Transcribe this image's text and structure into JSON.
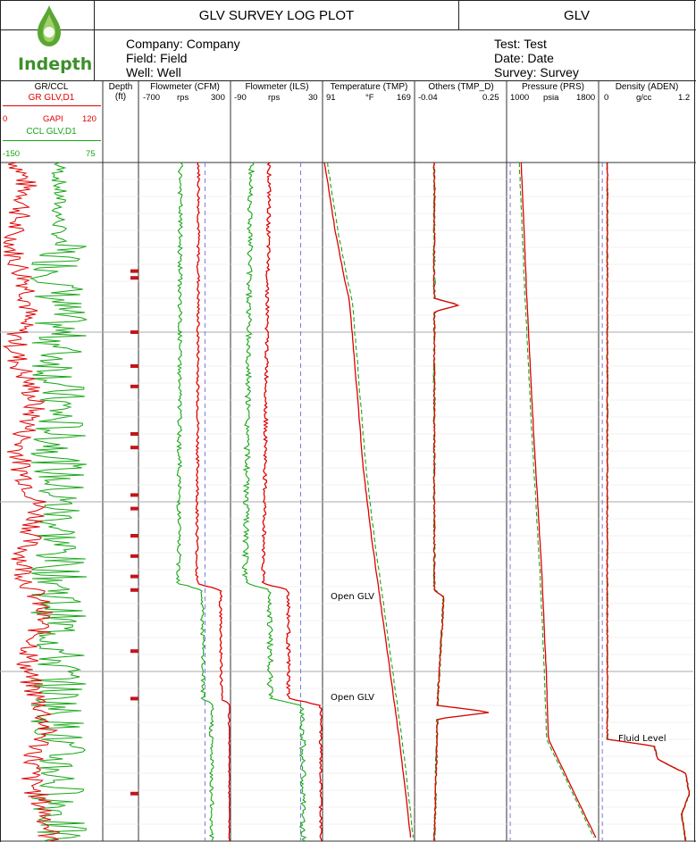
{
  "header": {
    "logo_text": "Indepth",
    "title": "GLV SURVEY LOG PLOT",
    "short_title": "GLV",
    "company": "Company: Company",
    "field": "Field: Field",
    "well": "Well: Well",
    "test": "Test: Test",
    "date": "Date: Date",
    "survey": "Survey: Survey"
  },
  "colors": {
    "red": "#e00000",
    "green": "#16a616",
    "grid": "#bbbbbb",
    "dashed_ref": "#7a7adf",
    "marker": "#c0161c"
  },
  "tracks": {
    "gr_ccl": {
      "title": "GR/CCL",
      "gr_curve": "GR GLV,D1",
      "gr_min": "0",
      "gr_unit": "GAPI",
      "gr_max": "120",
      "ccl_curve": "CCL GLV,D1",
      "ccl_min": "-150",
      "ccl_max": "75"
    },
    "depth": {
      "title": "Depth",
      "unit": "(ft)"
    },
    "cfm": {
      "title": "Flowmeter (CFM)",
      "min": "-700",
      "unit": "rps",
      "max": "300"
    },
    "ils": {
      "title": "Flowmeter (ILS)",
      "min": "-90",
      "unit": "rps",
      "max": "30"
    },
    "tmp": {
      "title": "Temperature (TMP)",
      "min": "91",
      "unit": "°F",
      "max": "169"
    },
    "others": {
      "title": "Others (TMP_D)",
      "min": "-0.04",
      "max": "0.25"
    },
    "prs": {
      "title": "Pressure (PRS)",
      "min": "1000",
      "unit": "psia",
      "max": "1800"
    },
    "aden": {
      "title": "Density (ADEN)",
      "min": "0",
      "unit": "g/cc",
      "max": "1.2"
    }
  },
  "annotations": {
    "open_glv_1": "Open GLV",
    "open_glv_2": "Open GLV",
    "fluid_level": "Fluid Level"
  },
  "chart_data": {
    "type": "line",
    "note_x": "relative depth index 0 (top of log) to 1 (bottom of log)",
    "depth_markers": [
      0.16,
      0.17,
      0.25,
      0.3,
      0.33,
      0.4,
      0.42,
      0.49,
      0.51,
      0.55,
      0.58,
      0.61,
      0.63,
      0.72,
      0.79,
      0.93
    ],
    "series": [
      {
        "name": "TMP",
        "track": "tmp",
        "x": [
          0.0,
          0.1,
          0.18,
          0.2,
          0.3,
          0.45,
          0.55,
          0.65,
          0.75,
          0.85,
          1.0
        ],
        "values": [
          92,
          101,
          110,
          113,
          118,
          125,
          132,
          140,
          148,
          156,
          166
        ]
      },
      {
        "name": "PRS",
        "track": "prs",
        "x": [
          0.0,
          0.2,
          0.4,
          0.6,
          0.75,
          0.85,
          1.0
        ],
        "values": [
          1120,
          1170,
          1230,
          1300,
          1340,
          1360,
          1790
        ]
      },
      {
        "name": "ADEN",
        "track": "aden",
        "x": [
          0.0,
          0.85,
          0.86,
          0.88,
          0.9,
          0.93,
          0.96,
          1.0
        ],
        "values": [
          0.1,
          0.1,
          0.7,
          0.75,
          1.1,
          1.15,
          1.05,
          1.1
        ]
      },
      {
        "name": "CFM",
        "track": "cfm",
        "x": [
          0.0,
          0.4,
          0.62,
          0.63,
          0.79,
          0.8,
          1.0
        ],
        "values": [
          -50,
          -60,
          -70,
          190,
          200,
          290,
          295
        ]
      },
      {
        "name": "ILS",
        "track": "ils",
        "x": [
          0.0,
          0.4,
          0.62,
          0.63,
          0.79,
          0.8,
          1.0
        ],
        "values": [
          -40,
          -45,
          -48,
          -15,
          -15,
          28,
          28
        ]
      },
      {
        "name": "TMP_D",
        "track": "others",
        "x": [
          0.0,
          0.2,
          0.21,
          0.22,
          0.4,
          0.63,
          0.64,
          0.8,
          0.81,
          0.82,
          1.0
        ],
        "values": [
          0.02,
          0.02,
          0.1,
          0.02,
          0.02,
          0.02,
          0.05,
          0.03,
          0.2,
          0.03,
          0.02
        ]
      }
    ]
  }
}
